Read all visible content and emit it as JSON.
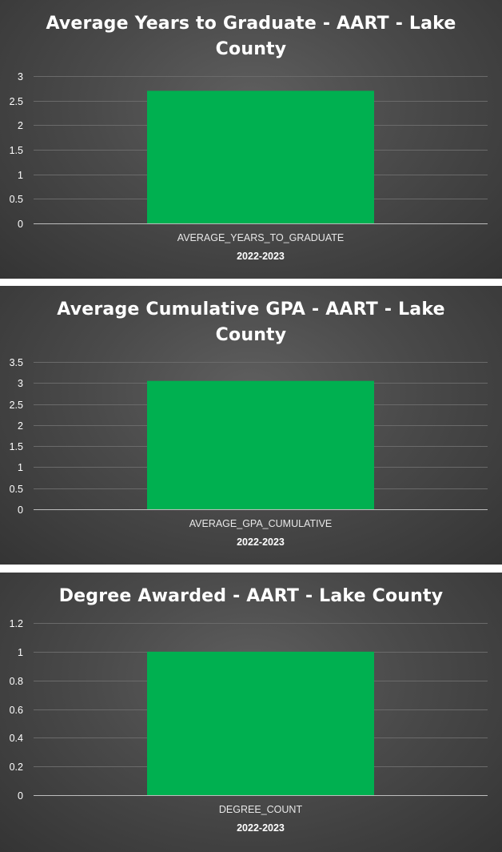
{
  "colors": {
    "bar": "#00b050",
    "background": "#444444",
    "text": "#ffffff"
  },
  "chart_data": [
    {
      "type": "bar",
      "title_lines": [
        "Average Years to Graduate - AART - Lake",
        "County"
      ],
      "categories": [
        "AVERAGE_YEARS_TO_GRADUATE"
      ],
      "values": [
        2.7
      ],
      "xlabel": "2022-2023",
      "ylabel": "",
      "ylim": [
        0,
        3
      ],
      "yticks": [
        "0",
        "0.5",
        "1",
        "1.5",
        "2",
        "2.5",
        "3"
      ],
      "grid": true,
      "legend": "none"
    },
    {
      "type": "bar",
      "title_lines": [
        "Average Cumulative GPA - AART - Lake",
        "County"
      ],
      "categories": [
        "AVERAGE_GPA_CUMULATIVE"
      ],
      "values": [
        3.05
      ],
      "xlabel": "2022-2023",
      "ylabel": "",
      "ylim": [
        0,
        3.5
      ],
      "yticks": [
        "0",
        "0.5",
        "1",
        "1.5",
        "2",
        "2.5",
        "3",
        "3.5"
      ],
      "grid": true,
      "legend": "none"
    },
    {
      "type": "bar",
      "title_lines": [
        "Degree Awarded - AART - Lake County"
      ],
      "categories": [
        "DEGREE_COUNT"
      ],
      "values": [
        1
      ],
      "xlabel": "2022-2023",
      "ylabel": "",
      "ylim": [
        0,
        1.2
      ],
      "yticks": [
        "0",
        "0.2",
        "0.4",
        "0.6",
        "0.8",
        "1",
        "1.2"
      ],
      "grid": true,
      "legend": "none"
    }
  ]
}
